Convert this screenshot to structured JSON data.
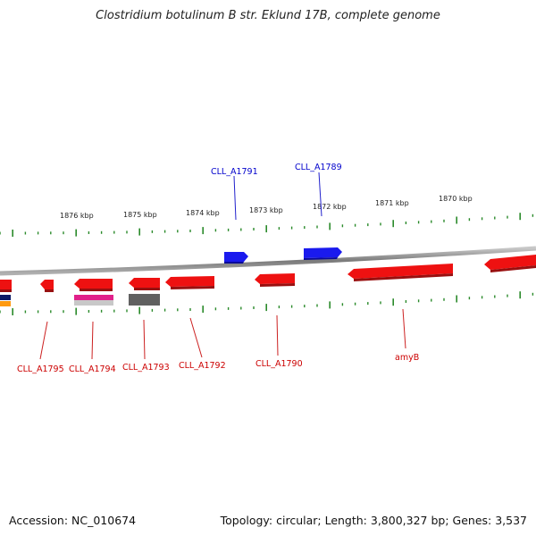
{
  "title": "Clostridium botulinum B str. Eklund 17B, complete genome",
  "footer": {
    "accession": "Accession: NC_010674",
    "info": "Topology: circular; Length: 3,800,327 bp; Genes: 3,537"
  },
  "colors": {
    "forward_gene": "#1010ee",
    "reverse_gene": "#ee1111",
    "backbone": "#8a8a8a",
    "tick": "#2a8a2a",
    "label_forward": "#0000cc",
    "label_reverse": "#cc0000"
  },
  "kbp_labels": [
    "1876 kbp",
    "1875 kbp",
    "1874 kbp",
    "1873 kbp",
    "1872 kbp",
    "1871 kbp",
    "1870 kbp"
  ],
  "forward_genes": [
    {
      "label": "CLL_A1791"
    },
    {
      "label": "CLL_A1789"
    }
  ],
  "reverse_genes": [
    {
      "label": "CLL_A1795"
    },
    {
      "label": "CLL_A1794"
    },
    {
      "label": "CLL_A1793"
    },
    {
      "label": "CLL_A1792"
    },
    {
      "label": "CLL_A1790"
    },
    {
      "label": "amyB"
    }
  ]
}
